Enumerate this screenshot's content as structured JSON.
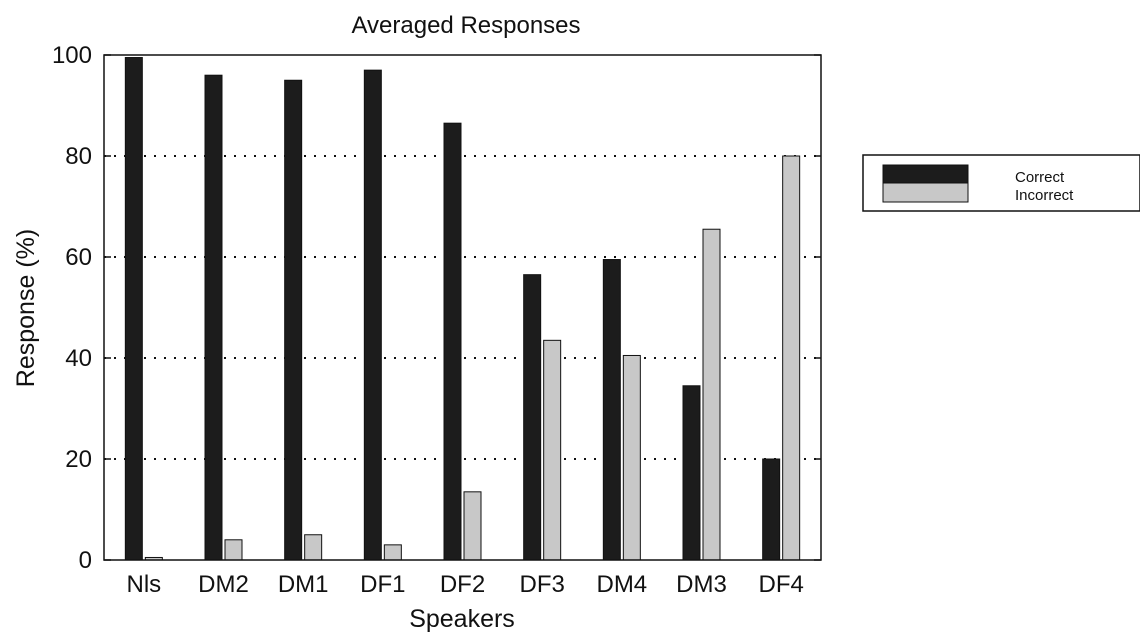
{
  "chart_data": {
    "type": "bar",
    "title": "Averaged Responses",
    "xlabel": "Speakers",
    "ylabel": "Response (%)",
    "categories": [
      "Nls",
      "DM2",
      "DM1",
      "DF1",
      "DF2",
      "DF3",
      "DM4",
      "DM3",
      "DF4"
    ],
    "series": [
      {
        "name": "Correct",
        "color": "#1c1c1c",
        "values": [
          99.5,
          96,
          95,
          97,
          86.5,
          56.5,
          59.5,
          34.5,
          20
        ]
      },
      {
        "name": "Incorrect",
        "color": "#c8c8c8",
        "values": [
          0.5,
          4,
          5,
          3,
          13.5,
          43.5,
          40.5,
          65.5,
          80
        ]
      }
    ],
    "ylim": [
      0,
      100
    ],
    "yticks": [
      0,
      20,
      40,
      60,
      80,
      100
    ],
    "grid": "horizontal-dotted",
    "legend_position": "right"
  }
}
